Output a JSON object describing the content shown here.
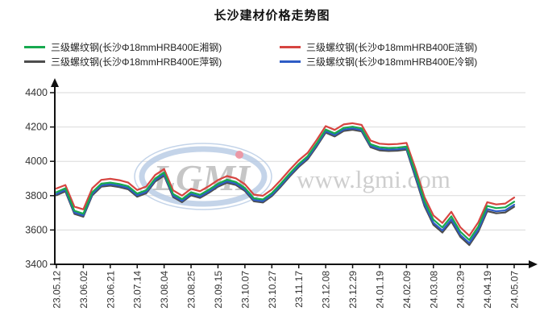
{
  "title": "长沙建材价格走势图",
  "watermark": {
    "logo_text": "LGMI",
    "url_text": "www.lgmi.com"
  },
  "legend": {
    "items": [
      {
        "label": "三级螺纹钢(长沙Φ18mmHRB400E湘钢)",
        "color": "#17a94f"
      },
      {
        "label": "三级螺纹钢(长沙Φ18mmHRB400E涟钢)",
        "color": "#d64541"
      },
      {
        "label": "三级螺纹钢(长沙Φ18mmHRB400E萍钢)",
        "color": "#4d4d4d"
      },
      {
        "label": "三级螺纹钢(长沙Φ18mmHRB400E冷钢)",
        "color": "#2e5cc5"
      }
    ]
  },
  "chart_data": {
    "type": "line",
    "title": "长沙建材价格走势图",
    "xlabel": "",
    "ylabel": "",
    "ylim": [
      3400,
      4400
    ],
    "y_ticks": [
      3400,
      3600,
      3800,
      4000,
      4200,
      4400
    ],
    "grid": true,
    "legend_position": "top",
    "points_per_tick": 3,
    "x_tick_labels": [
      "23.05.12",
      "23.06.02",
      "23.06.21",
      "23.07.14",
      "23.08.04",
      "23.08.25",
      "23.09.15",
      "23.10.07",
      "23.10.27",
      "23.11.17",
      "23.12.08",
      "23.12.29",
      "24.01.19",
      "24.02.09",
      "24.03.08",
      "24.03.29",
      "24.04.19",
      "24.05.07"
    ],
    "series": [
      {
        "key": "xianggang",
        "name": "三级螺纹钢(长沙Φ18mmHRB400E湘钢)",
        "color": "#17a94f",
        "values": [
          3820,
          3843,
          3712,
          3695,
          3820,
          3870,
          3876,
          3868,
          3855,
          3812,
          3832,
          3900,
          3935,
          3810,
          3780,
          3820,
          3805,
          3835,
          3870,
          3893,
          3880,
          3845,
          3785,
          3778,
          3815,
          3870,
          3930,
          3985,
          4030,
          4105,
          4185,
          4163,
          4195,
          4202,
          4192,
          4100,
          4082,
          4078,
          4080,
          4086,
          3935,
          3770,
          3660,
          3615,
          3680,
          3590,
          3542,
          3620,
          3740,
          3727,
          3732,
          3765
        ]
      },
      {
        "key": "liangang",
        "name": "三级螺纹钢(长沙Φ18mmHRB400E涟钢)",
        "color": "#d64541",
        "values": [
          3842,
          3862,
          3736,
          3720,
          3843,
          3892,
          3898,
          3890,
          3876,
          3833,
          3853,
          3920,
          3955,
          3831,
          3800,
          3840,
          3826,
          3856,
          3891,
          3914,
          3901,
          3866,
          3806,
          3799,
          3836,
          3891,
          3951,
          4006,
          4050,
          4125,
          4205,
          4183,
          4215,
          4222,
          4212,
          4121,
          4103,
          4099,
          4101,
          4107,
          3958,
          3793,
          3685,
          3641,
          3706,
          3616,
          3566,
          3645,
          3762,
          3749,
          3754,
          3789
        ]
      },
      {
        "key": "pinggang",
        "name": "三级螺纹钢(长沙Φ18mmHRB400E萍钢)",
        "color": "#4d4d4d",
        "values": [
          3802,
          3825,
          3694,
          3677,
          3802,
          3852,
          3858,
          3850,
          3837,
          3794,
          3814,
          3882,
          3917,
          3792,
          3762,
          3802,
          3787,
          3817,
          3852,
          3875,
          3862,
          3827,
          3767,
          3760,
          3797,
          3852,
          3912,
          3967,
          4012,
          4087,
          4167,
          4145,
          4177,
          4184,
          4174,
          4082,
          4064,
          4060,
          4062,
          4068,
          3905,
          3740,
          3630,
          3585,
          3650,
          3560,
          3512,
          3590,
          3710,
          3697,
          3702,
          3735
        ]
      },
      {
        "key": "lenggang",
        "name": "三级螺纹钢(长沙Φ18mmHRB400E冷钢)",
        "color": "#2e5cc5",
        "values": [
          3810,
          3833,
          3702,
          3685,
          3810,
          3860,
          3866,
          3858,
          3845,
          3802,
          3822,
          3890,
          3925,
          3800,
          3770,
          3810,
          3795,
          3825,
          3860,
          3883,
          3870,
          3835,
          3775,
          3768,
          3805,
          3860,
          3920,
          3975,
          4020,
          4095,
          4175,
          4153,
          4185,
          4192,
          4182,
          4090,
          4072,
          4068,
          4070,
          4076,
          3917,
          3752,
          3642,
          3597,
          3662,
          3572,
          3524,
          3602,
          3722,
          3709,
          3714,
          3747
        ]
      }
    ]
  }
}
